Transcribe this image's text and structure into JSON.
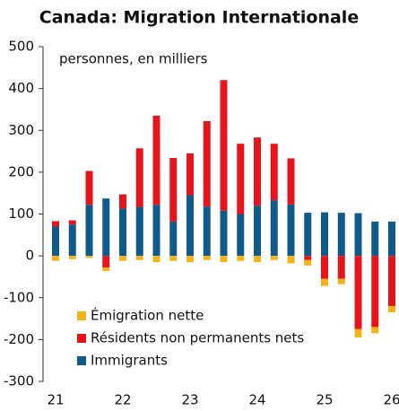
{
  "chart_data": {
    "type": "bar",
    "stacked": true,
    "title": "Canada: Migration Internationale",
    "annotation": "personnes, en milliers",
    "categories": [
      "21",
      null,
      null,
      null,
      "22",
      null,
      null,
      null,
      "23",
      null,
      null,
      null,
      "24",
      null,
      null,
      null,
      "25",
      null,
      null,
      null,
      "26"
    ],
    "series": [
      {
        "name": "Émigration nette",
        "color": "#f5b317",
        "values": [
          -12,
          -8,
          -5,
          -8,
          -12,
          -10,
          -15,
          -12,
          -15,
          -10,
          -15,
          -12,
          -15,
          -10,
          -18,
          -13,
          -17,
          -13,
          -20,
          -15,
          -15
        ]
      },
      {
        "name": "Résidents non permanents nets",
        "color": "#e8141c",
        "values": [
          13,
          10,
          81,
          -28,
          34,
          140,
          213,
          152,
          100,
          204,
          312,
          168,
          163,
          135,
          110,
          -10,
          -55,
          -55,
          -175,
          -170,
          -120
        ]
      },
      {
        "name": "Immigrants",
        "color": "#0e5a8a",
        "values": [
          70,
          75,
          122,
          137,
          113,
          117,
          122,
          82,
          145,
          118,
          108,
          100,
          120,
          133,
          123,
          103,
          104,
          103,
          102,
          82,
          82
        ]
      }
    ],
    "ylim": [
      -300,
      500
    ],
    "yticks": [
      -300,
      -200,
      -100,
      0,
      100,
      200,
      300,
      400,
      500
    ],
    "grid": false
  }
}
